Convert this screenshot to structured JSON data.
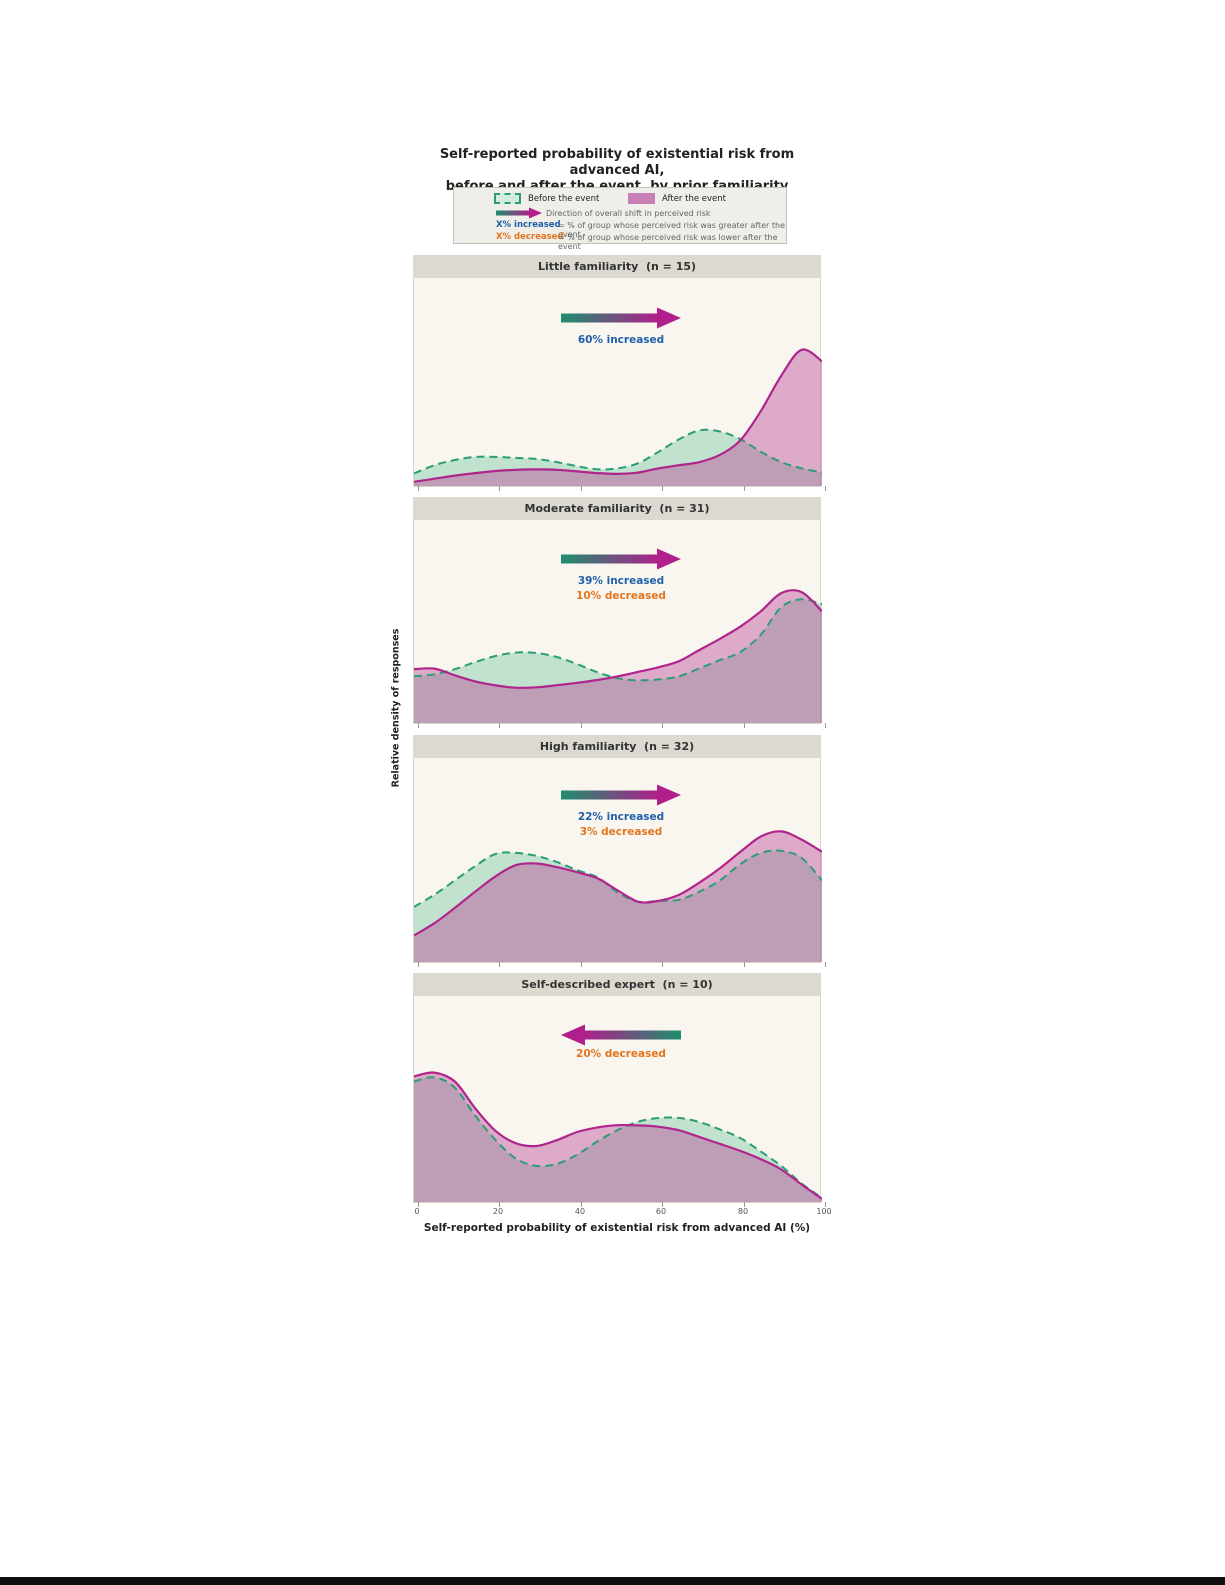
{
  "title": {
    "line1": "Self-reported probability of existential risk from advanced AI,",
    "line2": "before and after the event, by prior familiarity"
  },
  "legend": {
    "before_label": "Before the event",
    "after_label": "After the event",
    "arrow_label": "Direction of overall shift in perceived risk",
    "increased_term": "X% increased",
    "increased_def": "= % of group whose perceived risk was greater after the event",
    "decreased_term": "X% decreased",
    "decreased_def": "= % of group whose perceived risk was lower after the event"
  },
  "axis": {
    "ticks": [
      "0",
      "20",
      "40",
      "60",
      "80",
      "100"
    ],
    "tick_values": [
      0,
      20,
      40,
      60,
      80,
      100
    ],
    "x_title": "Self-reported probability of existential risk from advanced AI (%)",
    "y_title": "Relative density of responses"
  },
  "colors": {
    "before_line": "#2a9d74",
    "before_fill": "rgba(127,202,167,0.45)",
    "after_line": "#b0258c",
    "after_fill": "rgba(187,64,152,0.42)",
    "arrow_green": "#1f8e6e",
    "arrow_magenta": "#b01f8b",
    "increased_text": "#2060ab",
    "decreased_text": "#e2751f",
    "panel_header_bg": "#dbd9d0",
    "plot_bg": "#f8f6ee",
    "legend_bg": "#f0eee8"
  },
  "chart_data": {
    "type": "area",
    "description": "Overlaid kernel density curves of self-reported existential-risk probability before (dashed green) and after (solid magenta) the event, one panel per prior-familiarity group",
    "x_label": "Self-reported probability of existential risk from advanced AI (%)",
    "y_label": "Relative density of responses",
    "x_range": [
      0,
      100
    ],
    "y_unit": "relative density (fraction of panel height)",
    "grid": false,
    "panels": [
      {
        "title": "Little familiarity  (n = 15)",
        "arrow_direction": "right",
        "increased_label": "60% increased",
        "decreased_label": null,
        "x": [
          0,
          5,
          10,
          15,
          20,
          25,
          30,
          35,
          40,
          45,
          50,
          55,
          60,
          65,
          70,
          75,
          80,
          85,
          90,
          95,
          100
        ],
        "before": [
          0.06,
          0.1,
          0.125,
          0.14,
          0.14,
          0.135,
          0.13,
          0.115,
          0.095,
          0.08,
          0.085,
          0.11,
          0.165,
          0.225,
          0.268,
          0.262,
          0.225,
          0.165,
          0.115,
          0.085,
          0.065
        ],
        "after": [
          0.02,
          0.035,
          0.05,
          0.062,
          0.072,
          0.078,
          0.08,
          0.078,
          0.07,
          0.062,
          0.058,
          0.065,
          0.085,
          0.1,
          0.115,
          0.15,
          0.22,
          0.36,
          0.53,
          0.655,
          0.6
        ]
      },
      {
        "title": "Moderate familiarity  (n = 31)",
        "arrow_direction": "right",
        "increased_label": "39% increased",
        "decreased_label": "10% decreased",
        "x": [
          0,
          5,
          10,
          15,
          20,
          25,
          30,
          35,
          40,
          45,
          50,
          55,
          60,
          65,
          70,
          75,
          80,
          85,
          90,
          95,
          100
        ],
        "before": [
          0.23,
          0.24,
          0.265,
          0.3,
          0.33,
          0.347,
          0.345,
          0.325,
          0.29,
          0.25,
          0.22,
          0.21,
          0.215,
          0.23,
          0.27,
          0.31,
          0.35,
          0.435,
          0.57,
          0.61,
          0.585
        ],
        "after": [
          0.265,
          0.268,
          0.235,
          0.205,
          0.185,
          0.174,
          0.176,
          0.186,
          0.198,
          0.212,
          0.23,
          0.252,
          0.275,
          0.305,
          0.36,
          0.415,
          0.475,
          0.55,
          0.64,
          0.645,
          0.55
        ]
      },
      {
        "title": "High familiarity  (n = 32)",
        "arrow_direction": "right",
        "increased_label": "22% increased",
        "decreased_label": "3% decreased",
        "x": [
          0,
          5,
          10,
          15,
          20,
          25,
          30,
          35,
          40,
          45,
          50,
          55,
          60,
          65,
          70,
          75,
          80,
          85,
          90,
          95,
          100
        ],
        "before": [
          0.27,
          0.33,
          0.4,
          0.47,
          0.53,
          0.535,
          0.52,
          0.49,
          0.45,
          0.415,
          0.34,
          0.295,
          0.3,
          0.305,
          0.345,
          0.4,
          0.48,
          0.535,
          0.545,
          0.51,
          0.4
        ],
        "after": [
          0.13,
          0.19,
          0.265,
          0.345,
          0.42,
          0.475,
          0.483,
          0.465,
          0.44,
          0.41,
          0.35,
          0.295,
          0.3,
          0.33,
          0.39,
          0.46,
          0.54,
          0.615,
          0.64,
          0.6,
          0.54
        ]
      },
      {
        "title": "Self-described expert  (n = 10)",
        "arrow_direction": "left",
        "increased_label": null,
        "decreased_label": "20% decreased",
        "x": [
          0,
          5,
          10,
          15,
          20,
          25,
          30,
          35,
          40,
          45,
          50,
          55,
          60,
          65,
          70,
          75,
          80,
          85,
          90,
          95,
          100
        ],
        "before": [
          0.585,
          0.605,
          0.555,
          0.42,
          0.3,
          0.21,
          0.175,
          0.185,
          0.23,
          0.295,
          0.35,
          0.39,
          0.408,
          0.408,
          0.388,
          0.352,
          0.31,
          0.245,
          0.175,
          0.09,
          0.02
        ],
        "after": [
          0.61,
          0.628,
          0.585,
          0.455,
          0.345,
          0.285,
          0.272,
          0.3,
          0.34,
          0.362,
          0.373,
          0.372,
          0.365,
          0.348,
          0.315,
          0.282,
          0.248,
          0.208,
          0.158,
          0.085,
          0.015
        ]
      }
    ]
  }
}
